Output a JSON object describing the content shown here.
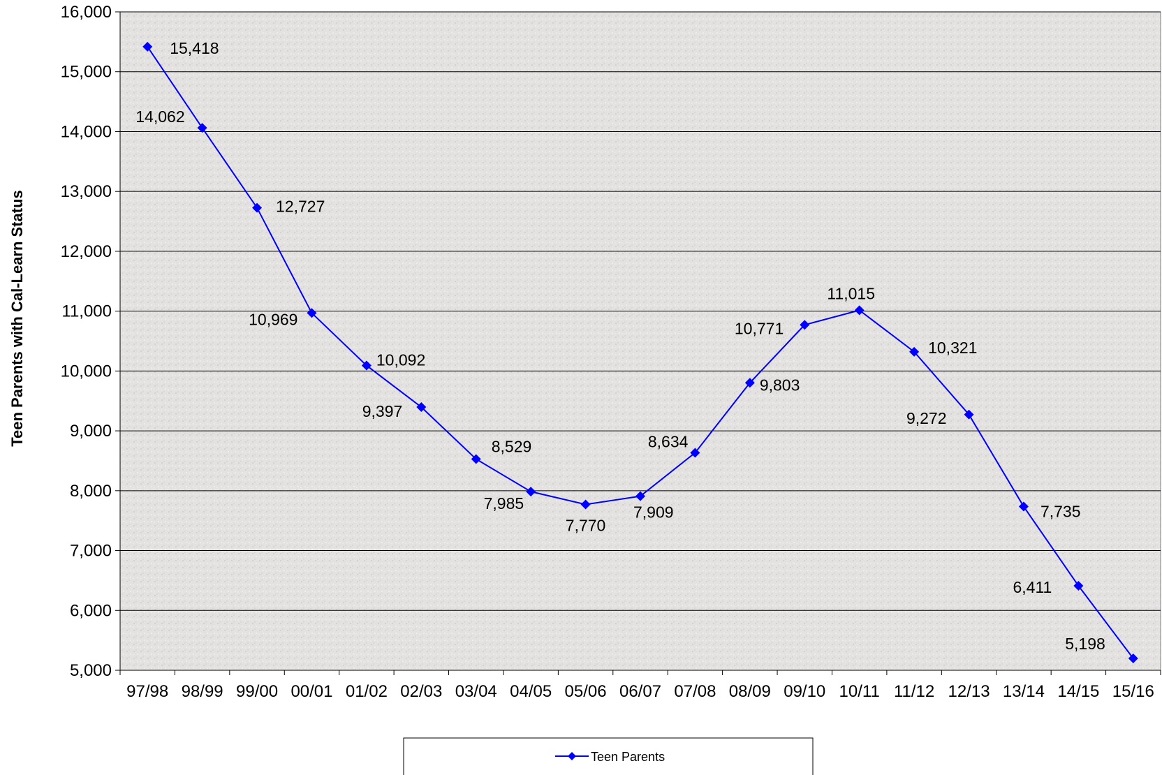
{
  "chart_data": {
    "type": "line",
    "ylabel": "Teen Parents with Cal-Learn Status",
    "xlabel": "",
    "ylim": [
      5000,
      16000
    ],
    "yticks": [
      "5,000",
      "6,000",
      "7,000",
      "8,000",
      "9,000",
      "10,000",
      "11,000",
      "12,000",
      "13,000",
      "14,000",
      "15,000",
      "16,000"
    ],
    "categories": [
      "97/98",
      "98/99",
      "99/00",
      "00/01",
      "01/02",
      "02/03",
      "03/04",
      "04/05",
      "05/06",
      "06/07",
      "07/08",
      "08/09",
      "09/10",
      "10/11",
      "11/12",
      "12/13",
      "13/14",
      "14/15",
      "15/16"
    ],
    "series": [
      {
        "name": "Teen Parents",
        "color": "#0000ff",
        "values": [
          15418,
          14062,
          12727,
          10969,
          10092,
          9397,
          8529,
          7985,
          7770,
          7909,
          8634,
          9803,
          10771,
          11015,
          10321,
          9272,
          7735,
          6411,
          5198
        ],
        "labels": [
          "15,418",
          "14,062",
          "12,727",
          "10,969",
          "10,092",
          "9,397",
          "8,529",
          "7,985",
          "7,770",
          "7,909",
          "8,634",
          "9,803",
          "10,771",
          "11,015",
          "10,321",
          "9,272",
          "7,735",
          "6,411",
          "5,198"
        ]
      }
    ],
    "grid": true,
    "legend_position": "bottom",
    "plot_background": "#e6e4e2",
    "gridline_color": "#000000"
  }
}
